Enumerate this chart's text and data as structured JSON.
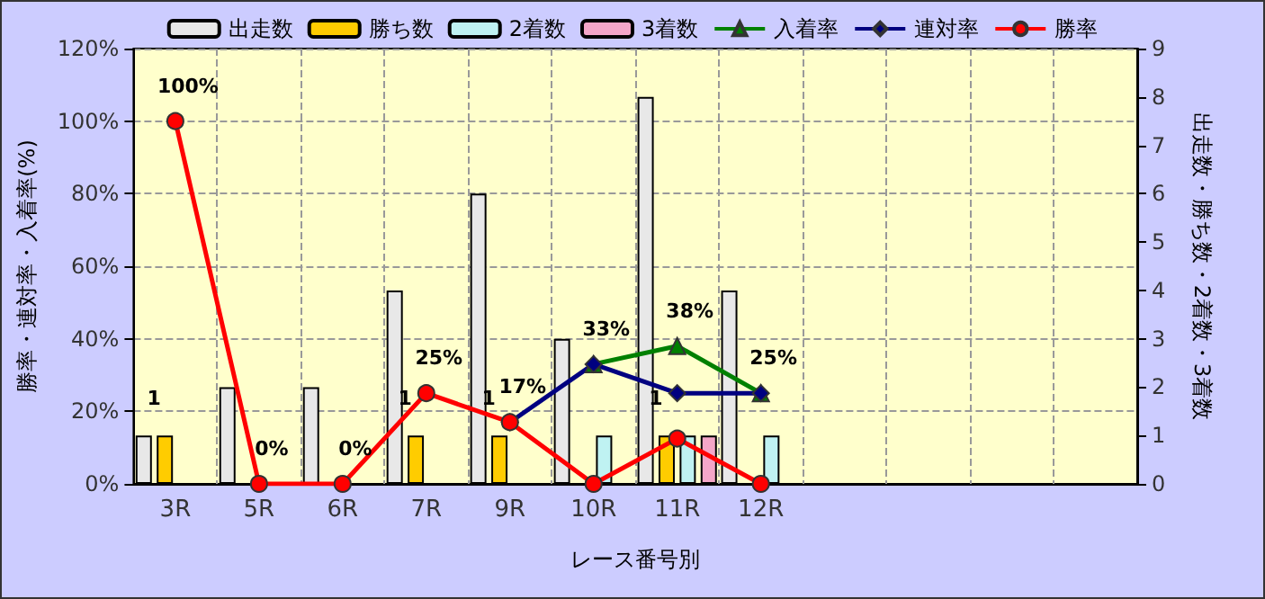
{
  "chart_data": {
    "type": "bar",
    "xlabel": "レース番号別",
    "ylabel": "勝率・連対率・入着率(%)",
    "y2label": "出走数・勝ち数・2着数・3着数",
    "categories": [
      "3R",
      "5R",
      "6R",
      "7R",
      "9R",
      "10R",
      "11R",
      "12R",
      null,
      null,
      null,
      null
    ],
    "series": [
      {
        "name": "出走数",
        "axis": "y2",
        "color": "#e8e8e8",
        "values": [
          1,
          2,
          2,
          4,
          6,
          3,
          8,
          4,
          null,
          null,
          null,
          null
        ]
      },
      {
        "name": "勝ち数",
        "axis": "y2",
        "color": "#ffcc00",
        "values": [
          1,
          null,
          null,
          1,
          1,
          null,
          1,
          null,
          null,
          null,
          null,
          null
        ],
        "value_labels": [
          "1",
          null,
          null,
          "1",
          "1",
          null,
          "1",
          null,
          null,
          null,
          null,
          null
        ]
      },
      {
        "name": "2着数",
        "axis": "y2",
        "color": "#bff2f2",
        "values": [
          null,
          null,
          null,
          null,
          null,
          1,
          1,
          1,
          null,
          null,
          null,
          null
        ]
      },
      {
        "name": "3着数",
        "axis": "y2",
        "color": "#f4a6c8",
        "values": [
          null,
          null,
          null,
          null,
          null,
          null,
          1,
          null,
          null,
          null,
          null,
          null
        ]
      },
      {
        "name": "入着率",
        "type": "line",
        "marker": "triangle",
        "color": "#008000",
        "values": [
          null,
          null,
          null,
          null,
          null,
          33,
          38,
          25,
          null,
          null,
          null,
          null
        ],
        "value_labels": [
          null,
          null,
          null,
          null,
          null,
          "33%",
          "38%",
          "25%",
          null,
          null,
          null,
          null
        ]
      },
      {
        "name": "連対率",
        "type": "line",
        "marker": "diamond",
        "color": "#000080",
        "values": [
          null,
          null,
          null,
          null,
          17,
          33,
          25,
          25,
          null,
          null,
          null,
          null
        ]
      },
      {
        "name": "勝率",
        "type": "line",
        "marker": "circle",
        "color": "#ff0000",
        "values": [
          100,
          0,
          0,
          25,
          17,
          0,
          12.5,
          0,
          null,
          null,
          null,
          null
        ],
        "value_labels": [
          "100%",
          "0%",
          "0%",
          "25%",
          "17%",
          null,
          null,
          null,
          null,
          null,
          null,
          null
        ]
      }
    ],
    "ylim": [
      0,
      120
    ],
    "yticks": [
      {
        "value": 0,
        "label": "0%"
      },
      {
        "value": 20,
        "label": "20%"
      },
      {
        "value": 40,
        "label": "40%"
      },
      {
        "value": 60,
        "label": "60%"
      },
      {
        "value": 80,
        "label": "80%"
      },
      {
        "value": 100,
        "label": "100%"
      },
      {
        "value": 120,
        "label": "120%"
      }
    ],
    "y2lim": [
      0,
      9
    ],
    "y2ticks": [
      0,
      1,
      2,
      3,
      4,
      5,
      6,
      7,
      8,
      9
    ],
    "grid": true,
    "legend": "top",
    "line_style": "solid"
  }
}
